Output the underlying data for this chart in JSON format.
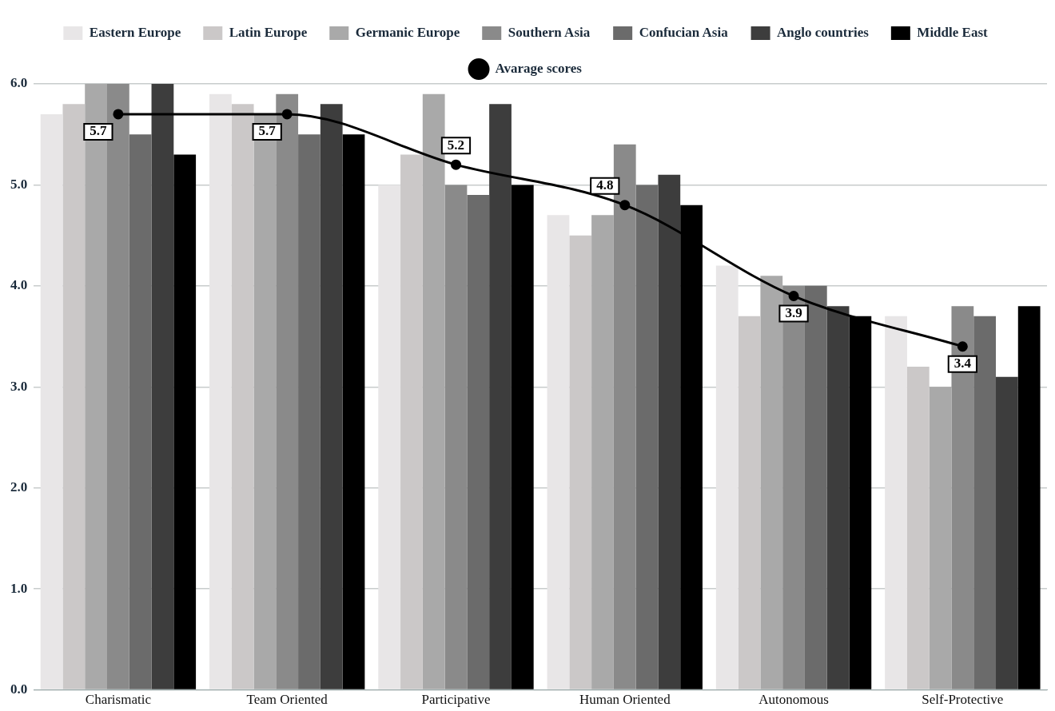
{
  "chart_data": {
    "type": "bar",
    "categories": [
      "Charismatic",
      "Team Oriented",
      "Participative",
      "Human Oriented",
      "Autonomous",
      "Self-Protective"
    ],
    "series": [
      {
        "name": "Eastern Europe",
        "color": "#e8e6e7",
        "values": [
          5.7,
          5.9,
          5.0,
          4.7,
          4.2,
          3.7
        ]
      },
      {
        "name": "Latin Europe",
        "color": "#cbc8c8",
        "values": [
          5.8,
          5.8,
          5.3,
          4.5,
          3.7,
          3.2
        ]
      },
      {
        "name": "Germanic Europe",
        "color": "#a9a9a9",
        "values": [
          6.0,
          5.7,
          5.9,
          4.7,
          4.1,
          3.0
        ]
      },
      {
        "name": "Southern Asia",
        "color": "#8a8a8a",
        "values": [
          6.0,
          5.9,
          5.0,
          5.4,
          4.0,
          3.8
        ]
      },
      {
        "name": "Confucian Asia",
        "color": "#6b6b6b",
        "values": [
          5.5,
          5.5,
          4.9,
          5.0,
          4.0,
          3.7
        ]
      },
      {
        "name": "Anglo countries",
        "color": "#3d3d3d",
        "values": [
          6.0,
          5.8,
          5.8,
          5.1,
          3.8,
          3.1
        ]
      },
      {
        "name": "Middle East",
        "color": "#000000",
        "values": [
          5.3,
          5.5,
          5.0,
          4.8,
          3.7,
          3.8
        ]
      },
      {
        "name": "Avarage scores",
        "type": "line",
        "color": "#000000",
        "marker": "circle",
        "values": [
          5.7,
          5.7,
          5.2,
          4.8,
          3.9,
          3.4
        ],
        "value_labels": [
          "5.7",
          "5.7",
          "5.2",
          "4.8",
          "3.9",
          "3.4"
        ]
      }
    ],
    "ylim": [
      0,
      6
    ],
    "yticks": [
      {
        "value": 0,
        "label": "0.0"
      },
      {
        "value": 1,
        "label": "1.0"
      },
      {
        "value": 2,
        "label": "2.0"
      },
      {
        "value": 3,
        "label": "3.0"
      },
      {
        "value": 4,
        "label": "4.0"
      },
      {
        "value": 5,
        "label": "5.0"
      },
      {
        "value": 6,
        "label": "6.0"
      }
    ],
    "grid": "y",
    "legend": "top"
  }
}
